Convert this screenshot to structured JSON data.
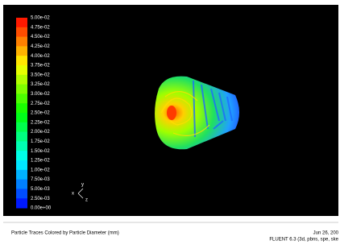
{
  "colorbar": {
    "labels": [
      "5.00e-02",
      "4.75e-02",
      "4.50e-02",
      "4.25e-02",
      "4.00e-02",
      "3.75e-02",
      "3.50e-02",
      "3.25e-02",
      "3.00e-02",
      "2.75e-02",
      "2.50e-02",
      "2.25e-02",
      "2.00e-02",
      "1.75e-02",
      "1.50e-02",
      "1.25e-02",
      "1.00e-02",
      "7.50e-03",
      "5.00e-03",
      "2.50e-03",
      "0.00e+00"
    ]
  },
  "axes": {
    "x": "x",
    "y": "y",
    "z": "z"
  },
  "footer": {
    "caption": "Particle Traces Colored by Particle Diameter (mm)",
    "date": "Jun 26, 200",
    "solver": "FLUENT 6.3 (3d, pbns, spe, ske"
  }
}
